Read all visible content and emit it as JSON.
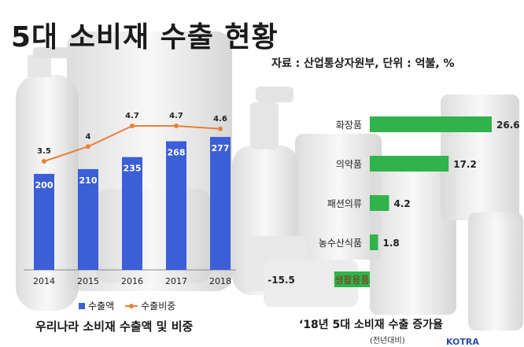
{
  "title": "5대 소비재 수출 현황",
  "source": "자료 : 산업통상자원부, 단위 : 억불, %",
  "colors": {
    "bar": "#3b5fd6",
    "line": "#e8803a",
    "growth": "#2fb34a",
    "negative": "#2fb34a"
  },
  "chart_data": [
    {
      "type": "bar",
      "caption": "우리나라 소비재 수출액 및 비중",
      "categories": [
        "2014",
        "2015",
        "2016",
        "2017",
        "2018"
      ],
      "series": [
        {
          "name": "수출액",
          "type": "bar",
          "values": [
            200,
            210,
            235,
            268,
            277
          ]
        },
        {
          "name": "수출비중",
          "type": "line",
          "values": [
            3.5,
            4,
            4.7,
            4.7,
            4.6
          ]
        }
      ],
      "legend": "bottom"
    },
    {
      "type": "bar",
      "orientation": "horizontal",
      "caption": "‘18년 5대 소비재 수출 증가율",
      "caption_sub": "(전년대비)",
      "categories": [
        "화장품",
        "의약품",
        "패션의류",
        "농수산식품",
        "생활용품"
      ],
      "values": [
        26.6,
        17.2,
        4.2,
        1.8,
        -15.5
      ]
    }
  ],
  "logo_text": "KOTRA"
}
